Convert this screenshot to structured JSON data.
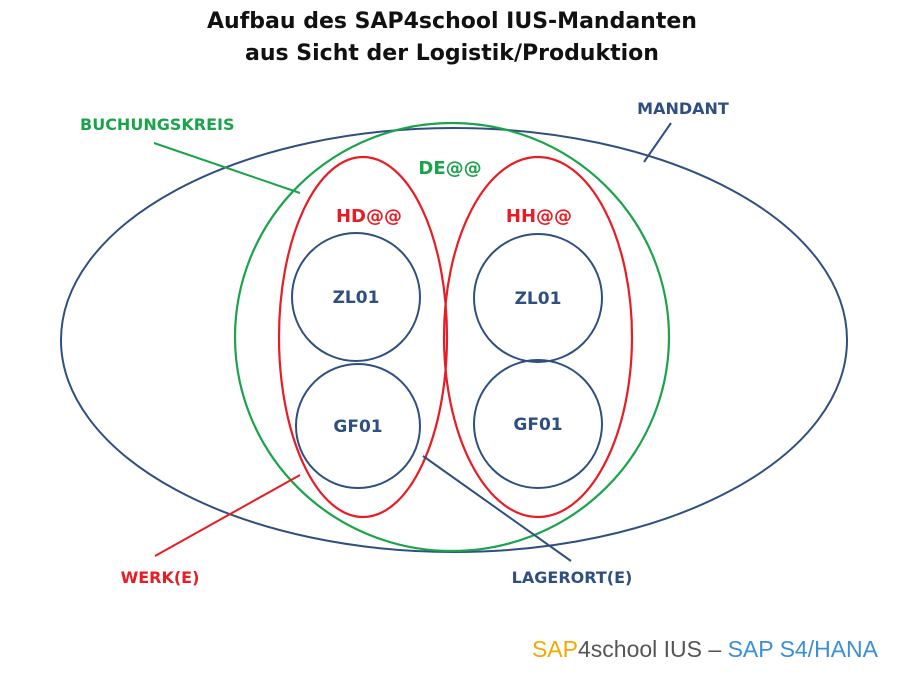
{
  "title": {
    "line1": "Aufbau des SAP4school IUS-Mandanten",
    "line2": "aus Sicht der Logistik/Produktion"
  },
  "labels": {
    "mandant": "MANDANT",
    "buchungskreis": "BUCHUNGSKREIS",
    "company_code": "DE@@",
    "plant_left": "HD@@",
    "plant_right": "HH@@",
    "storage_left_top": "ZL01",
    "storage_left_bottom": "GF01",
    "storage_right_top": "ZL01",
    "storage_right_bottom": "GF01",
    "werk": "WERK(E)",
    "lagerort": "LAGERORT(E)"
  },
  "footer": {
    "part1": "SAP",
    "part2": "4school IUS – ",
    "part3": "SAP S4/HANA"
  },
  "colors": {
    "mandant": "#2f4f80",
    "buchungskreis": "#1aa34a",
    "werk": "#e81c24",
    "lagerort": "#2f4f80",
    "title": "#111111",
    "footer_orange": "#f2a900",
    "footer_gray": "#555555",
    "footer_blue": "#3a8fd6"
  }
}
